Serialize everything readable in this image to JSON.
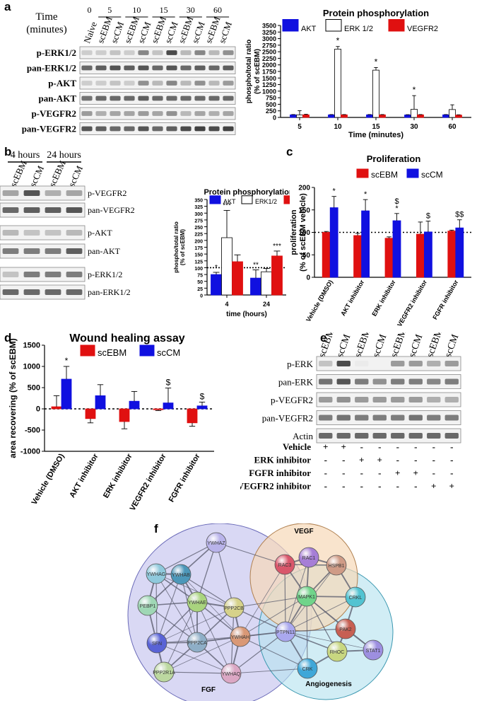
{
  "panel_labels": {
    "a": "a",
    "b": "b",
    "c": "c",
    "d": "d",
    "e": "e",
    "f": "f"
  },
  "panel_a": {
    "time_label": "Time",
    "time_unit": "(minutes)",
    "time_points": [
      "0",
      "5",
      "10",
      "15",
      "30",
      "60"
    ],
    "lanes": [
      "Naive",
      "scEBM",
      "scCM",
      "scEBM",
      "scCM",
      "scEBM",
      "scCM",
      "scEBM",
      "scCM",
      "scEBM",
      "scCM"
    ],
    "blots": [
      "p-ERK1/2",
      "pan-ERK1/2",
      "p-AKT",
      "pan-AKT",
      "p-VEGFR2",
      "pan-VEGFR2"
    ]
  },
  "panel_b": {
    "groups": [
      "4 hours",
      "24 hours"
    ],
    "lanes": [
      "scEBM",
      "scCM",
      "scEBM",
      "scCM"
    ],
    "blots": [
      "p-VEGFR2",
      "pan-VEGFR2",
      "p-AKT",
      "pan-AKT",
      "p-ERK1/2",
      "pan-ERK1/2"
    ]
  },
  "panel_e": {
    "lanes": [
      "scEBM",
      "scCM",
      "scEBM",
      "scCM",
      "scEBM",
      "scCM",
      "scEBM",
      "scCM"
    ],
    "blots": [
      "p-ERK",
      "pan-ERK",
      "p-VEGFR2",
      "pan-VEGFR2",
      "Actin"
    ],
    "treatments": [
      {
        "label": "Vehicle",
        "signs": [
          "+",
          "+",
          "-",
          "-",
          "-",
          "-",
          "-",
          "-"
        ]
      },
      {
        "label": "ERK inhibitor",
        "signs": [
          "-",
          "-",
          "+",
          "+",
          "-",
          "-",
          "-",
          "-"
        ]
      },
      {
        "label": "FGFR inhibitor",
        "signs": [
          "-",
          "-",
          "-",
          "-",
          "+",
          "+",
          "-",
          "-"
        ]
      },
      {
        "label": "VEGFR2 inhibitor",
        "signs": [
          "-",
          "-",
          "-",
          "-",
          "-",
          "-",
          "+",
          "+"
        ]
      }
    ]
  },
  "chart_data": [
    {
      "id": "a",
      "type": "bar",
      "title": "Protein phosphorylation",
      "xlabel": "Time (minutes)",
      "ylabel": "phospho/total ratio (% of scEBM)",
      "categories": [
        "5",
        "10",
        "15",
        "30",
        "60"
      ],
      "ylim": [
        0,
        3500
      ],
      "yticks": [
        "0",
        "250",
        "500",
        "750",
        "1000",
        "1250",
        "1500",
        "1750",
        "2000",
        "2250",
        "2500",
        "2750",
        "3000",
        "3250",
        "3500"
      ],
      "ytick_values": [
        0,
        250,
        500,
        750,
        1000,
        1250,
        1500,
        1750,
        2000,
        2250,
        2500,
        2750,
        3000,
        3250,
        3500
      ],
      "series": [
        {
          "name": "AKT",
          "color": "#1010e0",
          "values": [
            100,
            100,
            100,
            95,
            100
          ],
          "errors": [
            10,
            10,
            10,
            10,
            10
          ]
        },
        {
          "name": "ERK 1/2",
          "color": "#ffffff",
          "values": [
            95,
            2600,
            1800,
            310,
            300
          ],
          "errors": [
            160,
            100,
            100,
            520,
            180
          ]
        },
        {
          "name": "VEGFR2",
          "color": "#e01010",
          "values": [
            100,
            100,
            100,
            100,
            90
          ],
          "errors": [
            20,
            10,
            10,
            10,
            10
          ]
        }
      ],
      "annotations": [
        {
          "category": "10",
          "text": "*"
        },
        {
          "category": "15",
          "text": "*"
        },
        {
          "category": "30",
          "text": "*"
        }
      ]
    },
    {
      "id": "b",
      "type": "bar",
      "title": "Protein phosphorylation",
      "xlabel": "time (hours)",
      "ylabel": "phospho/total ratio (% of scEBM)",
      "categories": [
        "4",
        "24"
      ],
      "ylim": [
        0,
        350
      ],
      "yticks": [
        "0",
        "25",
        "50",
        "75",
        "100",
        "125",
        "150",
        "175",
        "200",
        "225",
        "250",
        "275",
        "300",
        "325",
        "350"
      ],
      "ytick_values": [
        0,
        25,
        50,
        75,
        100,
        125,
        150,
        175,
        200,
        225,
        250,
        275,
        300,
        325,
        350
      ],
      "reference_line": 100,
      "series": [
        {
          "name": "AKT",
          "color": "#1010e0",
          "values": [
            75,
            62
          ],
          "errors": [
            8,
            30
          ],
          "stars": [
            "*",
            "**"
          ]
        },
        {
          "name": "ERK1/2",
          "color": "#ffffff",
          "values": [
            210,
            85
          ],
          "errors": [
            100,
            12
          ],
          "stars": [
            "***",
            ""
          ]
        },
        {
          "name": "VEGFR2",
          "color": "#e01010",
          "values": [
            122,
            143
          ],
          "errors": [
            25,
            18
          ],
          "stars": [
            "",
            "***"
          ]
        }
      ]
    },
    {
      "id": "c",
      "type": "bar",
      "title": "Proliferation",
      "ylabel": "proliferation (% of scEBM vehicle)",
      "categories": [
        "Vehicle (DMSO)",
        "AKT inhibitor",
        "ERK inhibitor",
        "VEGFR2 inhibitor",
        "FGFR inhibitor"
      ],
      "ylim": [
        0,
        200
      ],
      "yticks": [
        "0",
        "50",
        "100",
        "150",
        "200"
      ],
      "ytick_values": [
        0,
        50,
        100,
        150,
        200
      ],
      "reference_line": 100,
      "series": [
        {
          "name": "scEBM",
          "color": "#e01010",
          "values": [
            100,
            93,
            87,
            96,
            103
          ],
          "errors": [
            2,
            5,
            3,
            27,
            2
          ],
          "marks": [
            "",
            "",
            "",
            "",
            ""
          ]
        },
        {
          "name": "scCM",
          "color": "#1010e0",
          "values": [
            155,
            148,
            126,
            101,
            110
          ],
          "errors": [
            25,
            25,
            16,
            24,
            18
          ],
          "marks": [
            "*",
            "*",
            "$\n*",
            "$",
            "$$"
          ]
        }
      ]
    },
    {
      "id": "d",
      "type": "bar",
      "title": "Wound healing assay",
      "ylabel": "area recovering (% of scEBM)",
      "categories": [
        "Vehicle (DMSO)",
        "AKT inhibitor",
        "ERK inhibitor",
        "VEGFR2 inhibitor",
        "FGFR inhibitor"
      ],
      "ylim": [
        -1000,
        1500
      ],
      "yticks": [
        "-1000",
        "-500",
        "0",
        "500",
        "1000",
        "1500"
      ],
      "ytick_values": [
        -1000,
        -500,
        0,
        500,
        1000,
        1500
      ],
      "reference_line": 0,
      "series": [
        {
          "name": "scEBM",
          "color": "#e01010",
          "values": [
            50,
            -230,
            -300,
            -20,
            -330
          ],
          "errors": [
            260,
            100,
            170,
            20,
            80
          ],
          "marks": [
            "",
            "",
            "",
            "",
            ""
          ]
        },
        {
          "name": "scCM",
          "color": "#1010e0",
          "values": [
            700,
            310,
            180,
            140,
            70
          ],
          "errors": [
            300,
            260,
            230,
            350,
            90
          ],
          "marks": [
            "*",
            "",
            "",
            "$",
            "$"
          ]
        }
      ]
    }
  ],
  "network": {
    "circles": [
      "VEGF",
      "FGF",
      "Angiogenesis"
    ],
    "nodes": [
      "YWHAZ",
      "RAC3",
      "RAC1",
      "HSPB1",
      "YWHAG",
      "YWHAB",
      "MAPK1",
      "CRKL",
      "PEBP1",
      "YWHAE",
      "PPP2CB",
      "PAK2",
      "PTPN11",
      "STAT1",
      "SFN",
      "PPP2CA",
      "YWHAH",
      "RHOC",
      "CRK",
      "PPP2R1A",
      "YWHAQ"
    ]
  }
}
